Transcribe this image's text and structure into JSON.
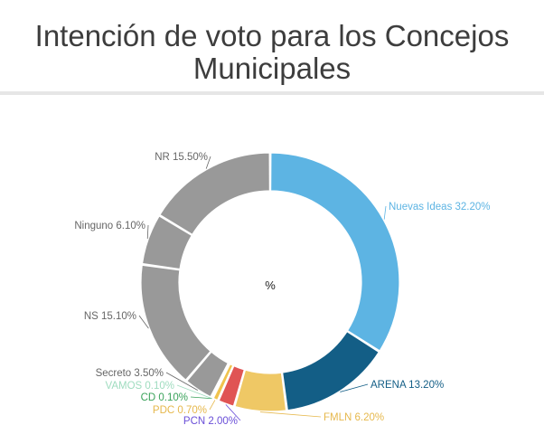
{
  "page": {
    "title": "Intención de voto para los Concejos Municipales"
  },
  "chart_data": {
    "type": "pie",
    "variant": "donut",
    "title": "Intención de voto para los Concejos Municipales",
    "center_label": "%",
    "slices": [
      {
        "label": "Nuevas Ideas",
        "value": 32.2,
        "display": "32.20%",
        "color": "#5db4e3"
      },
      {
        "label": "ARENA",
        "value": 13.2,
        "display": "13.20%",
        "color": "#135e86"
      },
      {
        "label": "FMLN",
        "value": 6.2,
        "display": "6.20%",
        "color": "#efc865"
      },
      {
        "label": "PCN",
        "value": 2.0,
        "display": "2.00%",
        "color": "#e05454"
      },
      {
        "label": "PDC",
        "value": 0.7,
        "display": "0.70%",
        "color": "#f0c34e"
      },
      {
        "label": "CD",
        "value": 0.1,
        "display": "0.10%",
        "color": "#3aa25a"
      },
      {
        "label": "VAMOS",
        "value": 0.1,
        "display": "0.10%",
        "color": "#9fdcbf"
      },
      {
        "label": "Secreto",
        "value": 3.5,
        "display": "3.50%",
        "color": "#999999"
      },
      {
        "label": "NS",
        "value": 15.1,
        "display": "15.10%",
        "color": "#999999"
      },
      {
        "label": "Ninguno",
        "value": 6.1,
        "display": "6.10%",
        "color": "#999999"
      },
      {
        "label": "NR",
        "value": 15.5,
        "display": "15.50%",
        "color": "#999999"
      }
    ],
    "label_colors": {
      "Nuevas Ideas": "#5db4e3",
      "ARENA": "#135e86",
      "FMLN": "#e6b84c",
      "PCN": "#6a4fd8",
      "PDC": "#e6b84c",
      "CD": "#3aa25a",
      "VAMOS": "#9fdcbf",
      "Secreto": "#666666",
      "NS": "#666666",
      "Ninguno": "#666666",
      "NR": "#666666"
    }
  }
}
